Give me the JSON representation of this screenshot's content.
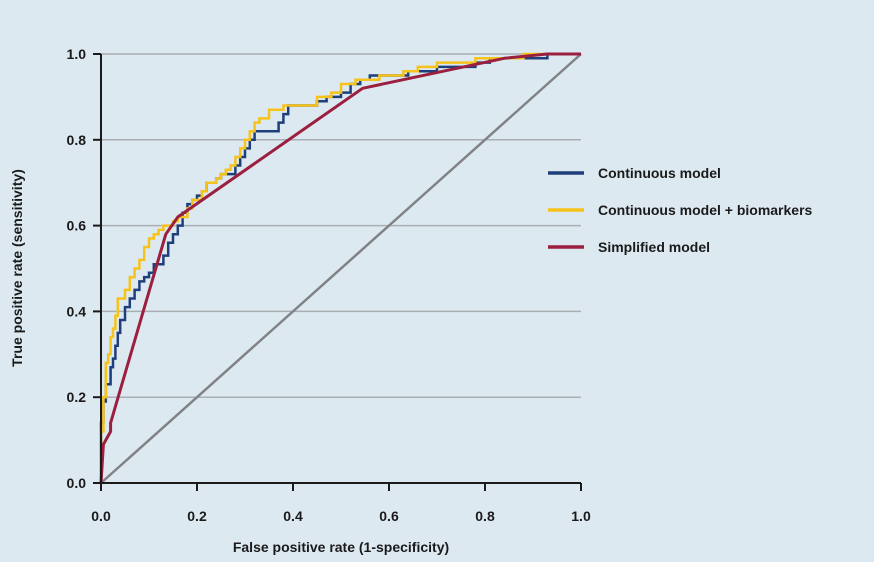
{
  "colors": {
    "background": "#dde9f1",
    "grid": "#a9aeb2",
    "axis": "#1a1a1a",
    "diagonal": "#808285"
  },
  "chart_data": {
    "type": "line",
    "title": "",
    "xlabel": "False positive rate (1-specificity)",
    "ylabel": "True positive rate (sensitivity)",
    "xlim": [
      0,
      1
    ],
    "ylim": [
      0,
      1
    ],
    "x_ticks": [
      "0.0",
      "0.2",
      "0.4",
      "0.6",
      "0.8",
      "1.0"
    ],
    "y_ticks": [
      "0.0",
      "0.2",
      "0.4",
      "0.6",
      "0.8",
      "1.0"
    ],
    "grid": "horizontal",
    "legend_position": "right",
    "reference_line": {
      "name": "",
      "color": "#808285",
      "points": [
        [
          0,
          0
        ],
        [
          1,
          1
        ]
      ]
    },
    "series": [
      {
        "name": "Continuous model",
        "color": "#1f3f7a",
        "step": true,
        "points": [
          [
            0,
            0
          ],
          [
            0,
            0.14
          ],
          [
            0.005,
            0.14
          ],
          [
            0.005,
            0.19
          ],
          [
            0.01,
            0.19
          ],
          [
            0.01,
            0.23
          ],
          [
            0.02,
            0.23
          ],
          [
            0.02,
            0.27
          ],
          [
            0.025,
            0.27
          ],
          [
            0.025,
            0.29
          ],
          [
            0.03,
            0.29
          ],
          [
            0.03,
            0.32
          ],
          [
            0.035,
            0.32
          ],
          [
            0.035,
            0.35
          ],
          [
            0.04,
            0.35
          ],
          [
            0.04,
            0.38
          ],
          [
            0.05,
            0.38
          ],
          [
            0.05,
            0.41
          ],
          [
            0.06,
            0.41
          ],
          [
            0.06,
            0.43
          ],
          [
            0.07,
            0.43
          ],
          [
            0.07,
            0.45
          ],
          [
            0.08,
            0.45
          ],
          [
            0.08,
            0.47
          ],
          [
            0.09,
            0.47
          ],
          [
            0.09,
            0.48
          ],
          [
            0.1,
            0.48
          ],
          [
            0.1,
            0.49
          ],
          [
            0.11,
            0.49
          ],
          [
            0.11,
            0.51
          ],
          [
            0.13,
            0.51
          ],
          [
            0.13,
            0.53
          ],
          [
            0.14,
            0.53
          ],
          [
            0.14,
            0.56
          ],
          [
            0.15,
            0.56
          ],
          [
            0.15,
            0.58
          ],
          [
            0.16,
            0.58
          ],
          [
            0.16,
            0.6
          ],
          [
            0.17,
            0.6
          ],
          [
            0.17,
            0.63
          ],
          [
            0.18,
            0.63
          ],
          [
            0.18,
            0.65
          ],
          [
            0.19,
            0.65
          ],
          [
            0.19,
            0.66
          ],
          [
            0.2,
            0.66
          ],
          [
            0.2,
            0.67
          ],
          [
            0.21,
            0.67
          ],
          [
            0.21,
            0.68
          ],
          [
            0.22,
            0.68
          ],
          [
            0.22,
            0.7
          ],
          [
            0.24,
            0.7
          ],
          [
            0.24,
            0.71
          ],
          [
            0.25,
            0.71
          ],
          [
            0.25,
            0.72
          ],
          [
            0.28,
            0.72
          ],
          [
            0.28,
            0.74
          ],
          [
            0.29,
            0.74
          ],
          [
            0.29,
            0.76
          ],
          [
            0.3,
            0.76
          ],
          [
            0.3,
            0.78
          ],
          [
            0.31,
            0.78
          ],
          [
            0.31,
            0.8
          ],
          [
            0.32,
            0.8
          ],
          [
            0.32,
            0.82
          ],
          [
            0.34,
            0.82
          ],
          [
            0.34,
            0.82
          ],
          [
            0.37,
            0.82
          ],
          [
            0.37,
            0.84
          ],
          [
            0.38,
            0.84
          ],
          [
            0.38,
            0.86
          ],
          [
            0.39,
            0.86
          ],
          [
            0.39,
            0.88
          ],
          [
            0.43,
            0.88
          ],
          [
            0.43,
            0.88
          ],
          [
            0.45,
            0.88
          ],
          [
            0.45,
            0.89
          ],
          [
            0.47,
            0.89
          ],
          [
            0.47,
            0.9
          ],
          [
            0.5,
            0.9
          ],
          [
            0.5,
            0.91
          ],
          [
            0.52,
            0.91
          ],
          [
            0.52,
            0.93
          ],
          [
            0.54,
            0.93
          ],
          [
            0.54,
            0.94
          ],
          [
            0.56,
            0.94
          ],
          [
            0.56,
            0.95
          ],
          [
            0.64,
            0.95
          ],
          [
            0.64,
            0.96
          ],
          [
            0.7,
            0.96
          ],
          [
            0.7,
            0.97
          ],
          [
            0.78,
            0.97
          ],
          [
            0.78,
            0.98
          ],
          [
            0.81,
            0.98
          ],
          [
            0.81,
            0.99
          ],
          [
            0.93,
            0.99
          ],
          [
            0.93,
            1.0
          ],
          [
            1.0,
            1.0
          ]
        ]
      },
      {
        "name": "Continuous model + biomarkers",
        "color": "#f5c31b",
        "step": true,
        "points": [
          [
            0,
            0
          ],
          [
            0,
            0.12
          ],
          [
            0.005,
            0.12
          ],
          [
            0.005,
            0.2
          ],
          [
            0.01,
            0.2
          ],
          [
            0.01,
            0.28
          ],
          [
            0.015,
            0.28
          ],
          [
            0.015,
            0.3
          ],
          [
            0.02,
            0.3
          ],
          [
            0.02,
            0.34
          ],
          [
            0.025,
            0.34
          ],
          [
            0.025,
            0.36
          ],
          [
            0.03,
            0.36
          ],
          [
            0.03,
            0.39
          ],
          [
            0.035,
            0.39
          ],
          [
            0.035,
            0.43
          ],
          [
            0.05,
            0.43
          ],
          [
            0.05,
            0.45
          ],
          [
            0.06,
            0.45
          ],
          [
            0.06,
            0.48
          ],
          [
            0.07,
            0.48
          ],
          [
            0.07,
            0.5
          ],
          [
            0.08,
            0.5
          ],
          [
            0.08,
            0.52
          ],
          [
            0.09,
            0.52
          ],
          [
            0.09,
            0.55
          ],
          [
            0.1,
            0.55
          ],
          [
            0.1,
            0.57
          ],
          [
            0.11,
            0.57
          ],
          [
            0.11,
            0.58
          ],
          [
            0.12,
            0.58
          ],
          [
            0.12,
            0.59
          ],
          [
            0.13,
            0.59
          ],
          [
            0.13,
            0.6
          ],
          [
            0.15,
            0.6
          ],
          [
            0.15,
            0.61
          ],
          [
            0.16,
            0.61
          ],
          [
            0.16,
            0.62
          ],
          [
            0.18,
            0.62
          ],
          [
            0.18,
            0.64
          ],
          [
            0.19,
            0.64
          ],
          [
            0.19,
            0.66
          ],
          [
            0.21,
            0.66
          ],
          [
            0.21,
            0.68
          ],
          [
            0.22,
            0.68
          ],
          [
            0.22,
            0.7
          ],
          [
            0.24,
            0.7
          ],
          [
            0.24,
            0.71
          ],
          [
            0.25,
            0.71
          ],
          [
            0.25,
            0.72
          ],
          [
            0.26,
            0.72
          ],
          [
            0.26,
            0.73
          ],
          [
            0.27,
            0.73
          ],
          [
            0.27,
            0.74
          ],
          [
            0.28,
            0.74
          ],
          [
            0.28,
            0.76
          ],
          [
            0.29,
            0.76
          ],
          [
            0.29,
            0.78
          ],
          [
            0.3,
            0.78
          ],
          [
            0.3,
            0.8
          ],
          [
            0.31,
            0.8
          ],
          [
            0.31,
            0.82
          ],
          [
            0.32,
            0.82
          ],
          [
            0.32,
            0.84
          ],
          [
            0.33,
            0.84
          ],
          [
            0.33,
            0.85
          ],
          [
            0.35,
            0.85
          ],
          [
            0.35,
            0.87
          ],
          [
            0.38,
            0.87
          ],
          [
            0.38,
            0.88
          ],
          [
            0.4,
            0.88
          ],
          [
            0.4,
            0.88
          ],
          [
            0.45,
            0.88
          ],
          [
            0.45,
            0.9
          ],
          [
            0.48,
            0.9
          ],
          [
            0.48,
            0.91
          ],
          [
            0.5,
            0.91
          ],
          [
            0.5,
            0.93
          ],
          [
            0.53,
            0.93
          ],
          [
            0.53,
            0.94
          ],
          [
            0.58,
            0.94
          ],
          [
            0.58,
            0.95
          ],
          [
            0.63,
            0.95
          ],
          [
            0.63,
            0.96
          ],
          [
            0.66,
            0.96
          ],
          [
            0.66,
            0.97
          ],
          [
            0.7,
            0.97
          ],
          [
            0.7,
            0.98
          ],
          [
            0.78,
            0.98
          ],
          [
            0.78,
            0.99
          ],
          [
            0.88,
            0.99
          ],
          [
            0.88,
            1.0
          ],
          [
            1.0,
            1.0
          ]
        ]
      },
      {
        "name": "Simplified model",
        "color": "#9b1f3f",
        "step": false,
        "points": [
          [
            0,
            0
          ],
          [
            0.005,
            0.09
          ],
          [
            0.02,
            0.12
          ],
          [
            0.02,
            0.14
          ],
          [
            0.135,
            0.58
          ],
          [
            0.16,
            0.62
          ],
          [
            0.545,
            0.92
          ],
          [
            0.84,
            0.99
          ],
          [
            0.93,
            1.0
          ],
          [
            1.0,
            1.0
          ]
        ]
      }
    ]
  }
}
